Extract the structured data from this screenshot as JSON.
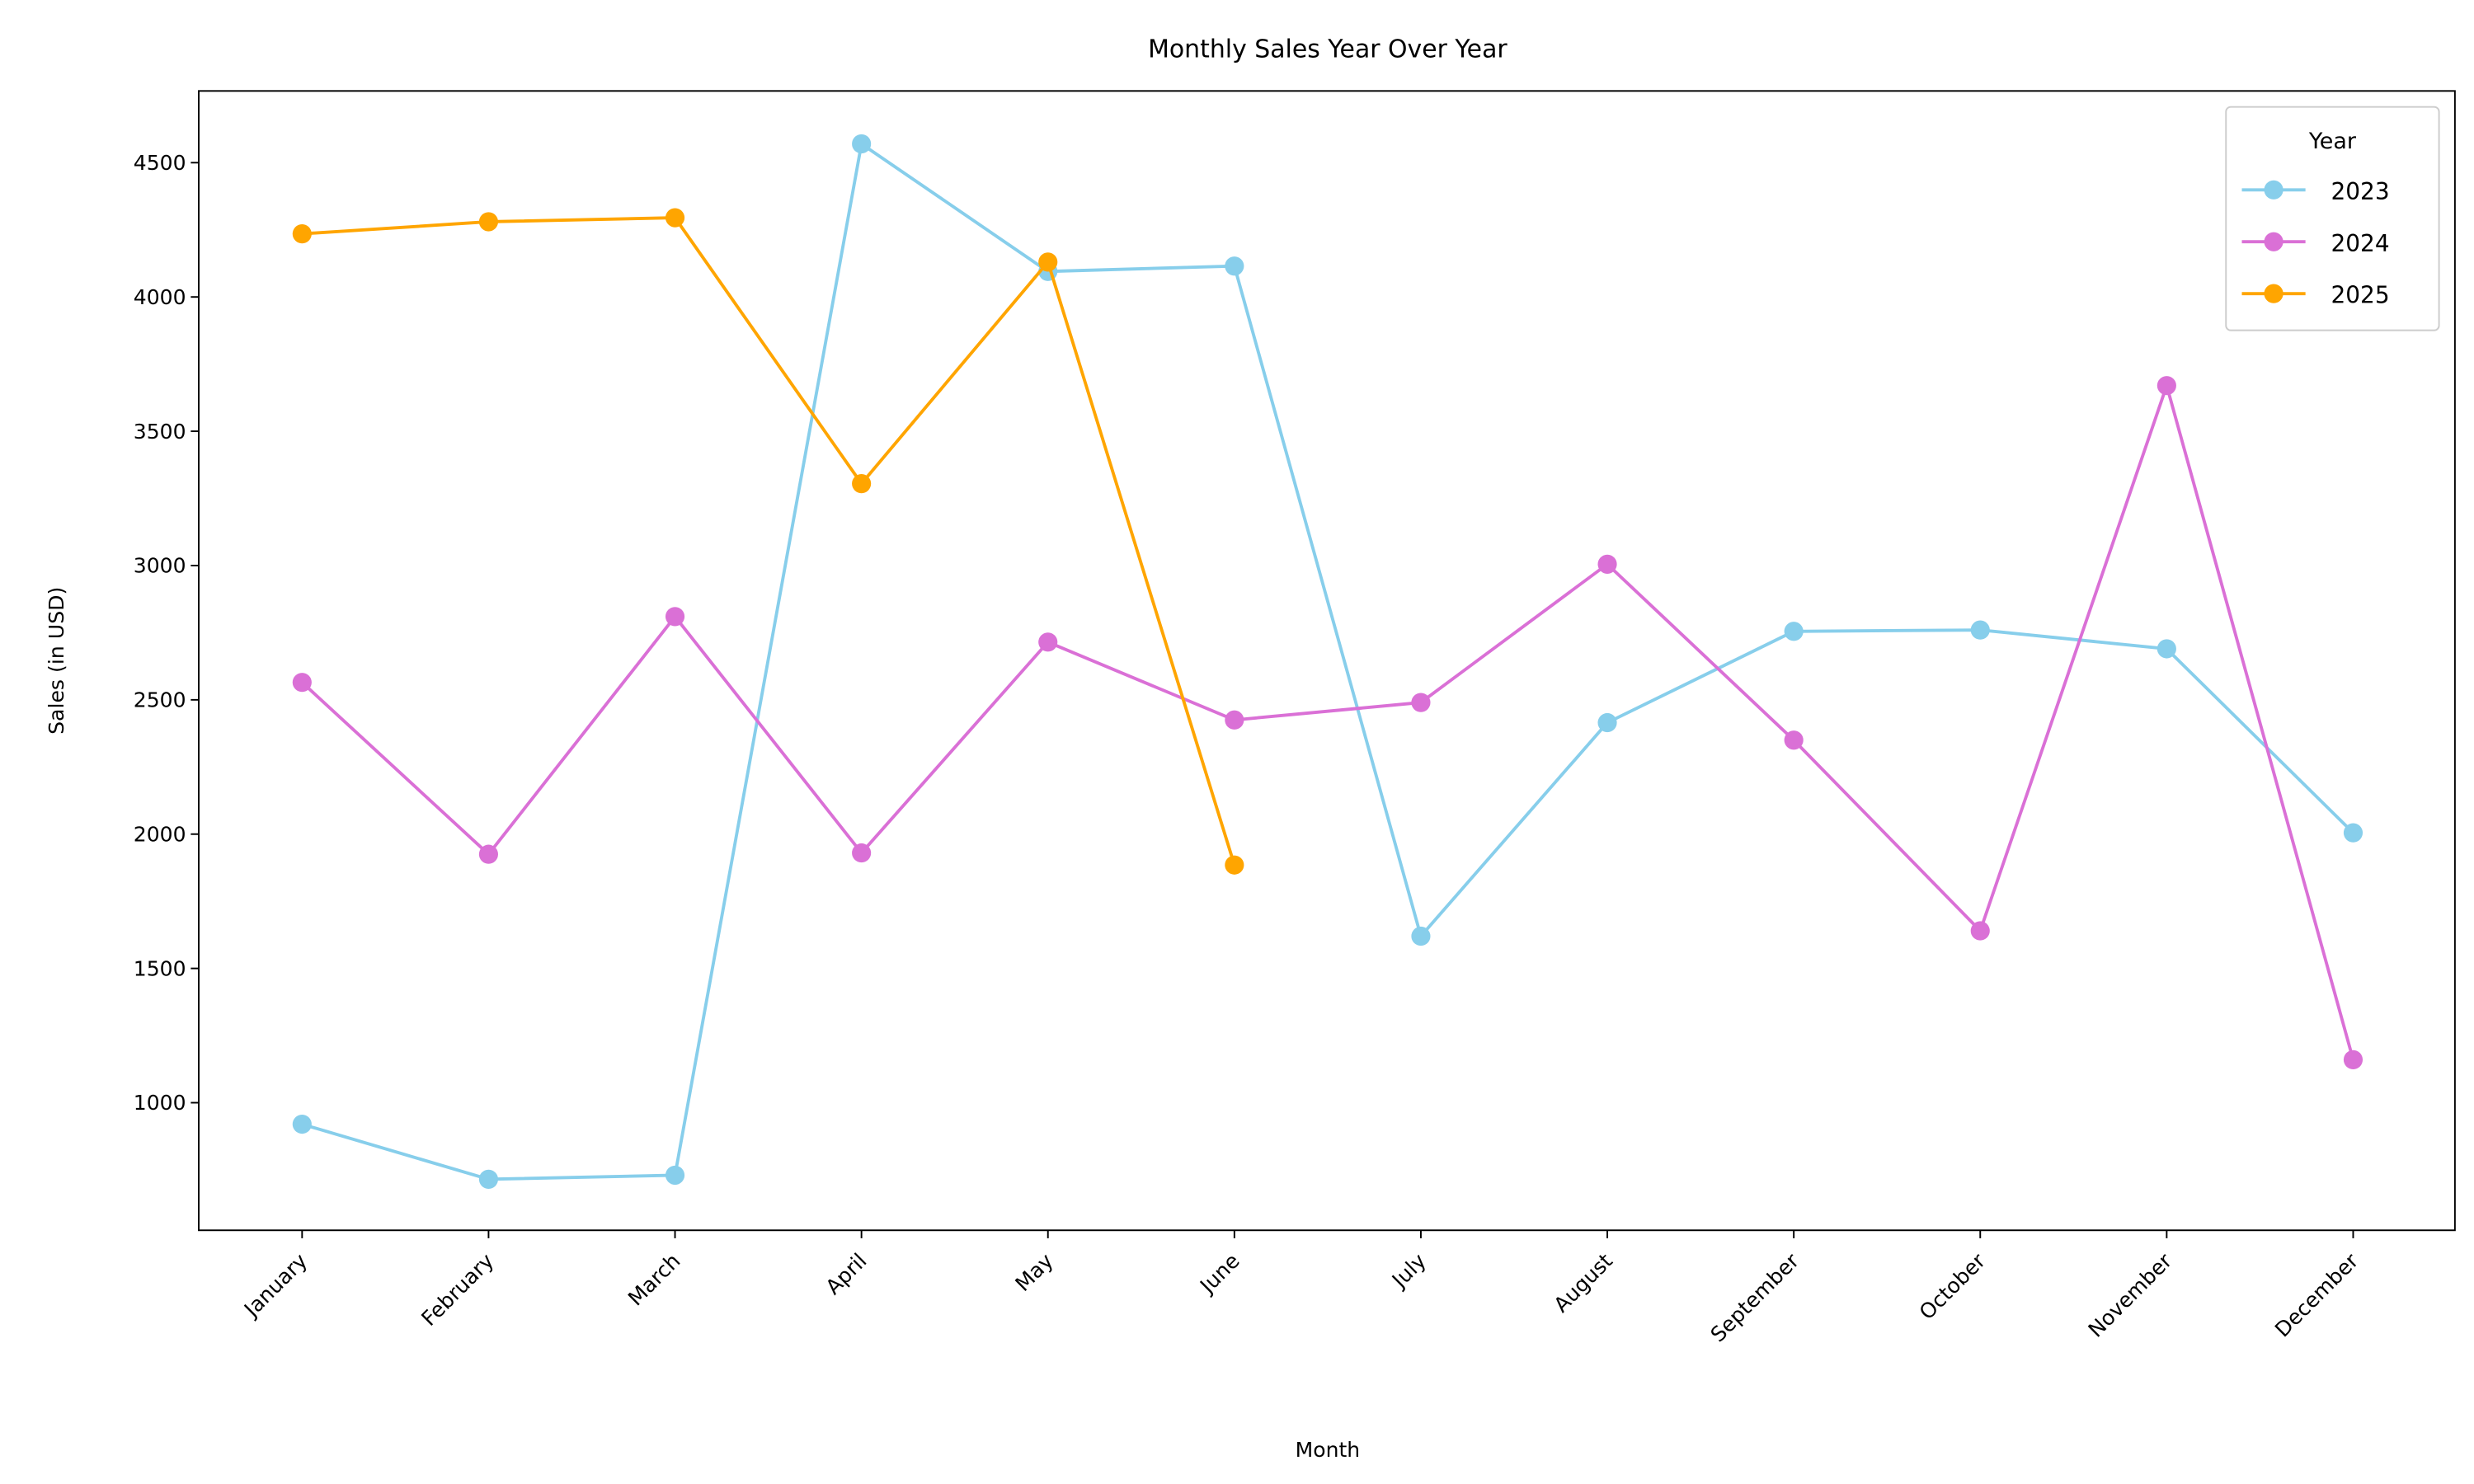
{
  "chart_data": {
    "type": "line",
    "title": "Monthly Sales Year Over Year",
    "xlabel": "Month",
    "ylabel": "Sales (in USD)",
    "categories": [
      "January",
      "February",
      "March",
      "April",
      "May",
      "June",
      "July",
      "August",
      "September",
      "October",
      "November",
      "December"
    ],
    "series": [
      {
        "name": "2023",
        "color": "#87ceeb",
        "values": [
          920,
          715,
          730,
          4570,
          4095,
          4115,
          1620,
          2415,
          2755,
          2760,
          2690,
          2005
        ]
      },
      {
        "name": "2024",
        "color": "#da70d6",
        "values": [
          2565,
          1925,
          2810,
          1930,
          2715,
          2425,
          2490,
          3005,
          2350,
          1640,
          3670,
          1160
        ]
      },
      {
        "name": "2025",
        "color": "#ffa500",
        "values": [
          4235,
          4280,
          4295,
          3305,
          4130,
          1885,
          null,
          null,
          null,
          null,
          null,
          null
        ]
      }
    ],
    "ylim": [
      525,
      4767
    ],
    "yticks": [
      1000,
      1500,
      2000,
      2500,
      3000,
      3500,
      4000,
      4500
    ],
    "grid": false,
    "legend_title": "Year",
    "legend": "upper right"
  }
}
